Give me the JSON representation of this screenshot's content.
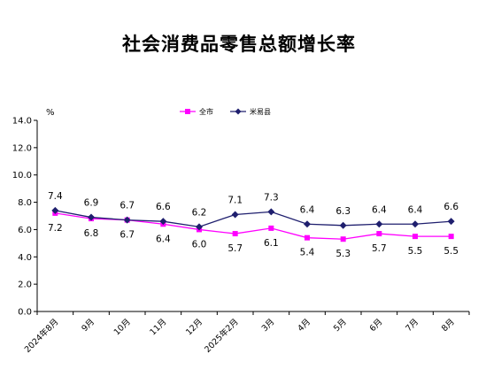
{
  "chart_data": {
    "type": "line",
    "title": "社会消费品零售总额增长率",
    "ylabel": "%",
    "ylim": [
      0,
      14
    ],
    "yticks": [
      "0.0",
      "2.0",
      "4.0",
      "6.0",
      "8.0",
      "10.0",
      "12.0",
      "14.0"
    ],
    "categories": [
      "2024年8月",
      "9月",
      "10月",
      "11月",
      "12月",
      "2025年2月",
      "3月",
      "4月",
      "5月",
      "6月",
      "7月",
      "8月"
    ],
    "legend_position": "top",
    "grid": false,
    "series": [
      {
        "name": "全市",
        "color": "#ff00ff",
        "marker": "square",
        "values": [
          7.2,
          6.8,
          6.7,
          6.4,
          6.0,
          5.7,
          6.1,
          5.4,
          5.3,
          5.7,
          5.5,
          5.5
        ],
        "labels": [
          "7.2",
          "6.8",
          "6.7",
          "6.4",
          "6.0",
          "5.7",
          "6.1",
          "5.4",
          "5.3",
          "5.7",
          "5.5",
          "5.5"
        ]
      },
      {
        "name": "米易县",
        "color": "#1f1f6e",
        "marker": "diamond",
        "values": [
          7.4,
          6.9,
          6.7,
          6.6,
          6.2,
          7.1,
          7.3,
          6.4,
          6.3,
          6.4,
          6.4,
          6.6
        ],
        "labels": [
          "7.4",
          "6.9",
          "6.7",
          "6.6",
          "6.2",
          "7.1",
          "7.3",
          "6.4",
          "6.3",
          "6.4",
          "6.4",
          "6.6"
        ]
      }
    ]
  }
}
